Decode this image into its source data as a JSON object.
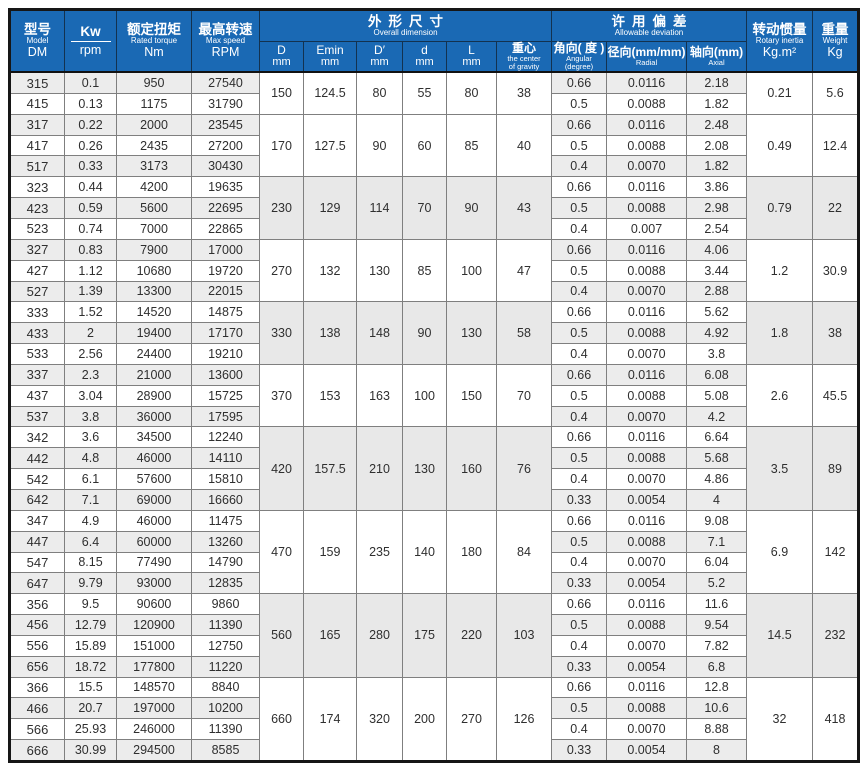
{
  "colors": {
    "header_bg": "#1a69b4",
    "header_text": "#ffffff",
    "row_shade": "#ececec",
    "grid_line": "#7f7f7f"
  },
  "header": {
    "model": {
      "zh": "型号",
      "en": "Model",
      "code": "DM"
    },
    "kw": {
      "top": "Kw",
      "bottom": "rpm"
    },
    "torque": {
      "zh": "额定扭矩",
      "en": "Rated torque",
      "unit": "Nm"
    },
    "speed": {
      "zh": "最高转速",
      "en": "Max speed",
      "unit": "RPM"
    },
    "dimension": {
      "zh": "外形尺寸",
      "en": "Overall dimension"
    },
    "deviation": {
      "zh": "许用偏差",
      "en": "Allowable deviation"
    },
    "inertia": {
      "zh": "转动惯量",
      "en": "Rotary inertia",
      "unit": "Kg.m²"
    },
    "weight": {
      "zh": "重量",
      "en": "Weight",
      "unit": "Kg"
    },
    "dim_cols": [
      {
        "name": "D",
        "unit": "mm"
      },
      {
        "name": "Emin",
        "unit": "mm"
      },
      {
        "name": "D′",
        "unit": "mm"
      },
      {
        "name": "d",
        "unit": "mm"
      },
      {
        "name": "L",
        "unit": "mm"
      },
      {
        "zh": "重心",
        "en1": "the center",
        "en2": "of gravity"
      }
    ],
    "dev_cols": [
      {
        "zh": "角向( 度 )",
        "en1": "Angular",
        "en2": "(degree)"
      },
      {
        "zh": "径向(mm/mm)",
        "en1": "Radial",
        "en2": ""
      },
      {
        "zh": "轴向(mm)",
        "en1": "Axial",
        "en2": ""
      }
    ]
  },
  "groups": [
    {
      "dims": {
        "D": "150",
        "Emin": "124.5",
        "Dp": "80",
        "d": "55",
        "L": "80",
        "cg": "38"
      },
      "inertia": "0.21",
      "weight": "5.6",
      "rows": [
        {
          "model": "315",
          "kw": "0.1",
          "torque": "950",
          "speed": "27540",
          "angular": "0.66",
          "radial": "0.0116",
          "axial": "2.18"
        },
        {
          "model": "415",
          "kw": "0.13",
          "torque": "1175",
          "speed": "31790",
          "angular": "0.5",
          "radial": "0.0088",
          "axial": "1.82"
        }
      ]
    },
    {
      "dims": {
        "D": "170",
        "Emin": "127.5",
        "Dp": "90",
        "d": "60",
        "L": "85",
        "cg": "40"
      },
      "inertia": "0.49",
      "weight": "12.4",
      "rows": [
        {
          "model": "317",
          "kw": "0.22",
          "torque": "2000",
          "speed": "23545",
          "angular": "0.66",
          "radial": "0.0116",
          "axial": "2.48"
        },
        {
          "model": "417",
          "kw": "0.26",
          "torque": "2435",
          "speed": "27200",
          "angular": "0.5",
          "radial": "0.0088",
          "axial": "2.08"
        },
        {
          "model": "517",
          "kw": "0.33",
          "torque": "3173",
          "speed": "30430",
          "angular": "0.4",
          "radial": "0.0070",
          "axial": "1.82"
        }
      ]
    },
    {
      "dims": {
        "D": "230",
        "Emin": "129",
        "Dp": "114",
        "d": "70",
        "L": "90",
        "cg": "43"
      },
      "inertia": "0.79",
      "weight": "22",
      "rows": [
        {
          "model": "323",
          "kw": "0.44",
          "torque": "4200",
          "speed": "19635",
          "angular": "0.66",
          "radial": "0.0116",
          "axial": "3.86"
        },
        {
          "model": "423",
          "kw": "0.59",
          "torque": "5600",
          "speed": "22695",
          "angular": "0.5",
          "radial": "0.0088",
          "axial": "2.98"
        },
        {
          "model": "523",
          "kw": "0.74",
          "torque": "7000",
          "speed": "22865",
          "angular": "0.4",
          "radial": "0.007",
          "axial": "2.54"
        }
      ]
    },
    {
      "dims": {
        "D": "270",
        "Emin": "132",
        "Dp": "130",
        "d": "85",
        "L": "100",
        "cg": "47"
      },
      "inertia": "1.2",
      "weight": "30.9",
      "rows": [
        {
          "model": "327",
          "kw": "0.83",
          "torque": "7900",
          "speed": "17000",
          "angular": "0.66",
          "radial": "0.0116",
          "axial": "4.06"
        },
        {
          "model": "427",
          "kw": "1.12",
          "torque": "10680",
          "speed": "19720",
          "angular": "0.5",
          "radial": "0.0088",
          "axial": "3.44"
        },
        {
          "model": "527",
          "kw": "1.39",
          "torque": "13300",
          "speed": "22015",
          "angular": "0.4",
          "radial": "0.0070",
          "axial": "2.88"
        }
      ]
    },
    {
      "dims": {
        "D": "330",
        "Emin": "138",
        "Dp": "148",
        "d": "90",
        "L": "130",
        "cg": "58"
      },
      "inertia": "1.8",
      "weight": "38",
      "rows": [
        {
          "model": "333",
          "kw": "1.52",
          "torque": "14520",
          "speed": "14875",
          "angular": "0.66",
          "radial": "0.0116",
          "axial": "5.62"
        },
        {
          "model": "433",
          "kw": "2",
          "torque": "19400",
          "speed": "17170",
          "angular": "0.5",
          "radial": "0.0088",
          "axial": "4.92"
        },
        {
          "model": "533",
          "kw": "2.56",
          "torque": "24400",
          "speed": "19210",
          "angular": "0.4",
          "radial": "0.0070",
          "axial": "3.8"
        }
      ]
    },
    {
      "dims": {
        "D": "370",
        "Emin": "153",
        "Dp": "163",
        "d": "100",
        "L": "150",
        "cg": "70"
      },
      "inertia": "2.6",
      "weight": "45.5",
      "rows": [
        {
          "model": "337",
          "kw": "2.3",
          "torque": "21000",
          "speed": "13600",
          "angular": "0.66",
          "radial": "0.0116",
          "axial": "6.08"
        },
        {
          "model": "437",
          "kw": "3.04",
          "torque": "28900",
          "speed": "15725",
          "angular": "0.5",
          "radial": "0.0088",
          "axial": "5.08"
        },
        {
          "model": "537",
          "kw": "3.8",
          "torque": "36000",
          "speed": "17595",
          "angular": "0.4",
          "radial": "0.0070",
          "axial": "4.2"
        }
      ]
    },
    {
      "dims": {
        "D": "420",
        "Emin": "157.5",
        "Dp": "210",
        "d": "130",
        "L": "160",
        "cg": "76"
      },
      "inertia": "3.5",
      "weight": "89",
      "rows": [
        {
          "model": "342",
          "kw": "3.6",
          "torque": "34500",
          "speed": "12240",
          "angular": "0.66",
          "radial": "0.0116",
          "axial": "6.64"
        },
        {
          "model": "442",
          "kw": "4.8",
          "torque": "46000",
          "speed": "14110",
          "angular": "0.5",
          "radial": "0.0088",
          "axial": "5.68"
        },
        {
          "model": "542",
          "kw": "6.1",
          "torque": "57600",
          "speed": "15810",
          "angular": "0.4",
          "radial": "0.0070",
          "axial": "4.86"
        },
        {
          "model": "642",
          "kw": "7.1",
          "torque": "69000",
          "speed": "16660",
          "angular": "0.33",
          "radial": "0.0054",
          "axial": "4"
        }
      ]
    },
    {
      "dims": {
        "D": "470",
        "Emin": "159",
        "Dp": "235",
        "d": "140",
        "L": "180",
        "cg": "84"
      },
      "inertia": "6.9",
      "weight": "142",
      "rows": [
        {
          "model": "347",
          "kw": "4.9",
          "torque": "46000",
          "speed": "11475",
          "angular": "0.66",
          "radial": "0.0116",
          "axial": "9.08"
        },
        {
          "model": "447",
          "kw": "6.4",
          "torque": "60000",
          "speed": "13260",
          "angular": "0.5",
          "radial": "0.0088",
          "axial": "7.1"
        },
        {
          "model": "547",
          "kw": "8.15",
          "torque": "77490",
          "speed": "14790",
          "angular": "0.4",
          "radial": "0.0070",
          "axial": "6.04"
        },
        {
          "model": "647",
          "kw": "9.79",
          "torque": "93000",
          "speed": "12835",
          "angular": "0.33",
          "radial": "0.0054",
          "axial": "5.2"
        }
      ]
    },
    {
      "dims": {
        "D": "560",
        "Emin": "165",
        "Dp": "280",
        "d": "175",
        "L": "220",
        "cg": "103"
      },
      "inertia": "14.5",
      "weight": "232",
      "rows": [
        {
          "model": "356",
          "kw": "9.5",
          "torque": "90600",
          "speed": "9860",
          "angular": "0.66",
          "radial": "0.0116",
          "axial": "11.6"
        },
        {
          "model": "456",
          "kw": "12.79",
          "torque": "120900",
          "speed": "11390",
          "angular": "0.5",
          "radial": "0.0088",
          "axial": "9.54"
        },
        {
          "model": "556",
          "kw": "15.89",
          "torque": "151000",
          "speed": "12750",
          "angular": "0.4",
          "radial": "0.0070",
          "axial": "7.82"
        },
        {
          "model": "656",
          "kw": "18.72",
          "torque": "177800",
          "speed": "11220",
          "angular": "0.33",
          "radial": "0.0054",
          "axial": "6.8"
        }
      ]
    },
    {
      "dims": {
        "D": "660",
        "Emin": "174",
        "Dp": "320",
        "d": "200",
        "L": "270",
        "cg": "126"
      },
      "inertia": "32",
      "weight": "418",
      "rows": [
        {
          "model": "366",
          "kw": "15.5",
          "torque": "148570",
          "speed": "8840",
          "angular": "0.66",
          "radial": "0.0116",
          "axial": "12.8"
        },
        {
          "model": "466",
          "kw": "20.7",
          "torque": "197000",
          "speed": "10200",
          "angular": "0.5",
          "radial": "0.0088",
          "axial": "10.6"
        },
        {
          "model": "566",
          "kw": "25.93",
          "torque": "246000",
          "speed": "11390",
          "angular": "0.4",
          "radial": "0.0070",
          "axial": "8.88"
        },
        {
          "model": "666",
          "kw": "30.99",
          "torque": "294500",
          "speed": "8585",
          "angular": "0.33",
          "radial": "0.0054",
          "axial": "8"
        }
      ]
    }
  ]
}
